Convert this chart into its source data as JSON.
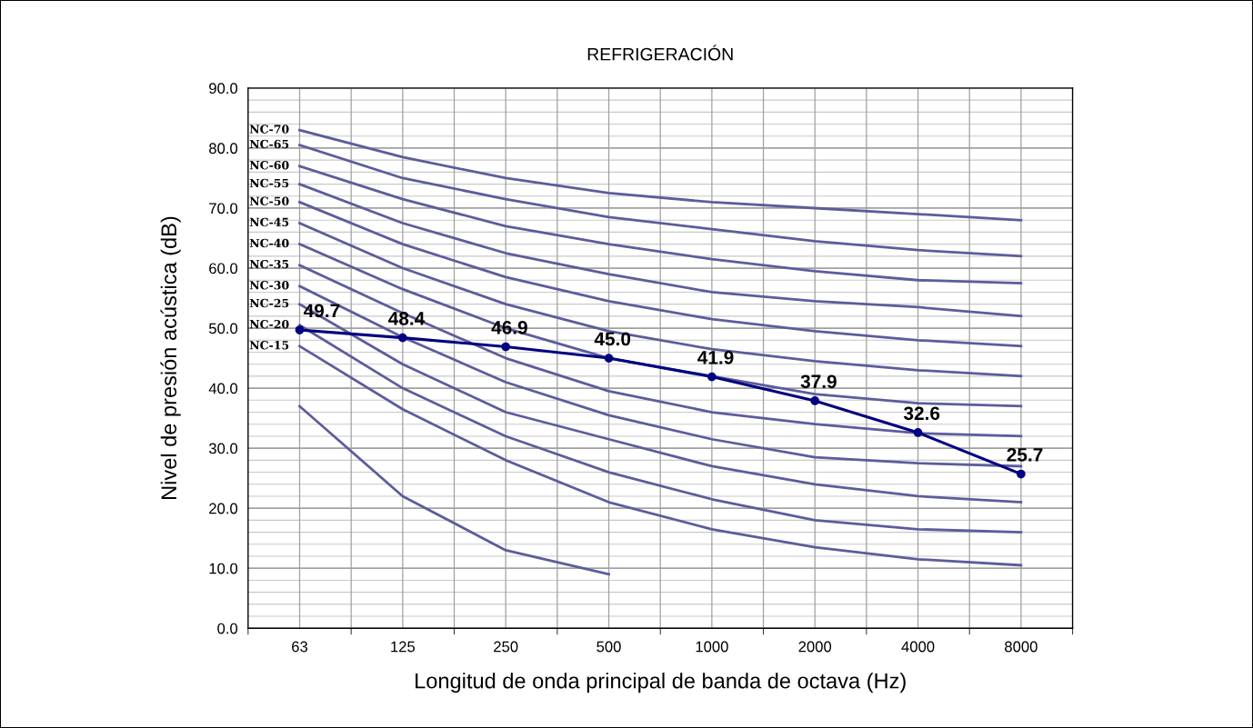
{
  "chart_data": {
    "type": "line",
    "title": "REFRIGERACIÓN",
    "xlabel": "Longitud de onda principal de banda de octava (Hz)",
    "ylabel": "Nivel de presión acústica (dB)",
    "categories": [
      "63",
      "125",
      "250",
      "500",
      "1000",
      "2000",
      "4000",
      "8000"
    ],
    "ylim": [
      0,
      90
    ],
    "yticks": [
      {
        "value": 0,
        "label": "0.0"
      },
      {
        "value": 10,
        "label": "10.0"
      },
      {
        "value": 20,
        "label": "20.0"
      },
      {
        "value": 30,
        "label": "30.0"
      },
      {
        "value": 40,
        "label": "40.0"
      },
      {
        "value": 50,
        "label": "50.0"
      },
      {
        "value": 60,
        "label": "60.0"
      },
      {
        "value": 70,
        "label": "70.0"
      },
      {
        "value": 80,
        "label": "80.0"
      },
      {
        "value": 90,
        "label": "90.0"
      }
    ],
    "grid": true,
    "legend": false,
    "marker": "none",
    "line_style": "solid",
    "series": [
      {
        "name": "NC-70",
        "color": "#5c5c9c",
        "values": [
          83,
          78.5,
          75,
          72.5,
          71,
          70,
          69,
          68
        ]
      },
      {
        "name": "NC-65",
        "color": "#5c5c9c",
        "values": [
          80.5,
          75,
          71.5,
          68.5,
          66.5,
          64.5,
          63,
          62
        ]
      },
      {
        "name": "NC-60",
        "color": "#5c5c9c",
        "values": [
          77,
          71.5,
          67,
          64,
          61.5,
          59.5,
          58,
          57.5
        ]
      },
      {
        "name": "NC-55",
        "color": "#5c5c9c",
        "values": [
          74,
          67.5,
          62.5,
          59,
          56,
          54.5,
          53.5,
          52
        ]
      },
      {
        "name": "NC-50",
        "color": "#5c5c9c",
        "values": [
          71,
          64,
          58.5,
          54.5,
          51.5,
          49.5,
          48,
          47
        ]
      },
      {
        "name": "NC-45",
        "color": "#5c5c9c",
        "values": [
          67.5,
          60,
          54,
          49.5,
          46.5,
          44.5,
          43,
          42
        ]
      },
      {
        "name": "NC-40",
        "color": "#5c5c9c",
        "values": [
          64,
          56.5,
          50,
          45,
          42,
          39,
          37.5,
          37
        ]
      },
      {
        "name": "NC-35",
        "color": "#5c5c9c",
        "values": [
          60.5,
          52.5,
          45,
          39.5,
          36,
          34,
          32.5,
          32
        ]
      },
      {
        "name": "NC-30",
        "color": "#5c5c9c",
        "values": [
          57,
          48.5,
          41,
          35.5,
          31.5,
          28.5,
          27.5,
          27
        ]
      },
      {
        "name": "NC-25",
        "color": "#5c5c9c",
        "values": [
          54,
          44,
          36,
          31.5,
          27,
          24,
          22,
          21
        ]
      },
      {
        "name": "NC-20",
        "color": "#5c5c9c",
        "values": [
          50.5,
          40,
          32,
          26,
          21.5,
          18,
          16.5,
          16
        ]
      },
      {
        "name": "NC-15",
        "color": "#5c5c9c",
        "values": [
          47,
          36.5,
          28,
          21,
          16.5,
          13.5,
          11.5,
          10.5
        ]
      },
      {
        "color": "#5c5c9c",
        "values": [
          37,
          22,
          13,
          9,
          null,
          null,
          null,
          null
        ]
      },
      {
        "color": "#000080",
        "marker": "circle",
        "value_labels": [
          "49.7",
          "48.4",
          "46.9",
          "45.0",
          "41.9",
          "37.9",
          "32.6",
          "25.7"
        ],
        "values": [
          49.7,
          48.4,
          46.9,
          45.0,
          41.9,
          37.9,
          32.6,
          25.7
        ]
      }
    ]
  }
}
